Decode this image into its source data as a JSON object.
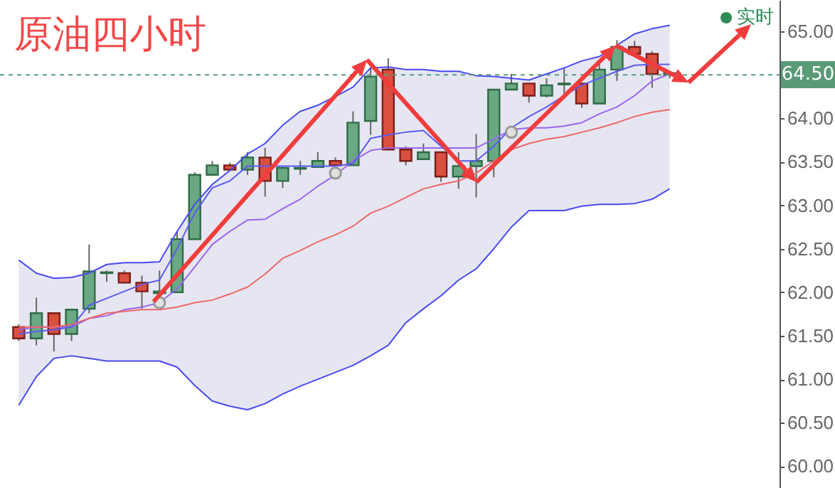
{
  "chart_data": {
    "type": "candlestick",
    "title": "原油四小时",
    "categories": [
      null,
      null,
      null,
      null,
      null,
      null,
      null,
      null,
      null,
      null,
      null,
      null,
      null,
      null,
      null,
      null,
      null,
      null,
      null,
      null,
      null,
      null,
      null,
      null,
      null,
      null,
      null,
      null,
      null,
      null,
      null,
      null,
      null,
      null,
      null,
      null,
      null,
      null
    ],
    "ohlc": [
      [
        61.6,
        61.63,
        61.44,
        61.47
      ],
      [
        61.47,
        61.94,
        61.39,
        61.76
      ],
      [
        61.76,
        61.76,
        61.32,
        61.52
      ],
      [
        61.52,
        61.8,
        61.44,
        61.8
      ],
      [
        61.81,
        62.55,
        61.76,
        62.24
      ],
      [
        62.22,
        62.25,
        62.12,
        62.23
      ],
      [
        62.22,
        62.25,
        62.1,
        62.11
      ],
      [
        62.11,
        62.19,
        61.81,
        62.01
      ],
      [
        61.99,
        62.25,
        61.88,
        62.01
      ],
      [
        62.0,
        62.7,
        62.0,
        62.61
      ],
      [
        62.61,
        63.38,
        62.61,
        63.35
      ],
      [
        63.35,
        63.51,
        63.35,
        63.46
      ],
      [
        63.46,
        63.49,
        63.4,
        63.41
      ],
      [
        63.41,
        63.61,
        63.35,
        63.55
      ],
      [
        63.55,
        63.66,
        63.1,
        63.28
      ],
      [
        63.28,
        63.45,
        63.2,
        63.43
      ],
      [
        63.42,
        63.51,
        63.35,
        63.43
      ],
      [
        63.44,
        63.61,
        63.44,
        63.51
      ],
      [
        63.51,
        63.55,
        63.44,
        63.46
      ],
      [
        63.46,
        64.08,
        63.46,
        63.95
      ],
      [
        63.97,
        64.59,
        63.81,
        64.48
      ],
      [
        64.56,
        64.69,
        63.64,
        63.64
      ],
      [
        63.64,
        63.68,
        63.46,
        63.51
      ],
      [
        63.53,
        63.71,
        63.53,
        63.61
      ],
      [
        63.61,
        63.61,
        63.27,
        63.33
      ],
      [
        63.33,
        63.61,
        63.19,
        63.45
      ],
      [
        63.45,
        63.82,
        63.09,
        63.51
      ],
      [
        63.51,
        64.33,
        63.32,
        64.33
      ],
      [
        64.33,
        64.51,
        64.33,
        64.4
      ],
      [
        64.4,
        64.4,
        64.18,
        64.26
      ],
      [
        64.26,
        64.46,
        64.24,
        64.38
      ],
      [
        64.39,
        64.58,
        64.26,
        64.4
      ],
      [
        64.4,
        64.4,
        64.12,
        64.17
      ],
      [
        64.17,
        64.67,
        64.17,
        64.56
      ],
      [
        64.56,
        64.9,
        64.43,
        64.82
      ],
      [
        64.82,
        64.89,
        64.74,
        64.74
      ],
      [
        64.74,
        64.77,
        64.35,
        64.51
      ],
      [
        64.5,
        64.54,
        64.46,
        64.52
      ]
    ],
    "series": [
      {
        "type": "line",
        "color": "#9966ee",
        "values": [
          61.57,
          61.6,
          61.6,
          61.6,
          61.7,
          61.73,
          61.8,
          61.83,
          61.88,
          62.04,
          62.29,
          62.55,
          62.7,
          62.83,
          62.84,
          62.96,
          63.07,
          63.22,
          63.35,
          63.51,
          63.63,
          63.66,
          63.66,
          63.66,
          63.66,
          63.66,
          63.66,
          63.76,
          63.87,
          63.89,
          63.89,
          63.91,
          63.95,
          64.05,
          64.13,
          64.26,
          64.43,
          64.51
        ],
        "lower": [
          60.7,
          61.03,
          61.24,
          61.27,
          61.24,
          61.21,
          61.21,
          61.21,
          61.21,
          61.14,
          60.93,
          60.75,
          60.69,
          60.65,
          60.72,
          60.83,
          60.92,
          61.0,
          61.08,
          61.16,
          61.27,
          61.39,
          61.65,
          61.81,
          61.96,
          62.14,
          62.27,
          62.5,
          62.75,
          62.94,
          62.94,
          62.94,
          62.99,
          63.01,
          63.01,
          63.02,
          63.07,
          63.19
        ],
        "upper": [
          62.37,
          62.22,
          62.16,
          62.17,
          62.22,
          62.32,
          62.34,
          62.34,
          62.35,
          62.7,
          63.01,
          63.24,
          63.4,
          63.59,
          63.71,
          63.92,
          64.08,
          64.15,
          64.25,
          64.36,
          64.58,
          64.59,
          64.56,
          64.56,
          64.54,
          64.54,
          64.49,
          64.48,
          64.46,
          64.44,
          64.51,
          64.58,
          64.66,
          64.71,
          64.84,
          64.97,
          65.03,
          65.07
        ]
      },
      {
        "type": "line",
        "color": "#4a4af0",
        "values": [
          60.7,
          61.03,
          61.24,
          61.27,
          61.24,
          61.21,
          61.21,
          61.21,
          61.21,
          61.14,
          60.93,
          60.75,
          60.69,
          60.65,
          60.72,
          60.83,
          60.92,
          61.0,
          61.08,
          61.16,
          61.27,
          61.39,
          61.65,
          61.81,
          61.96,
          62.14,
          62.27,
          62.5,
          62.75,
          62.94,
          62.94,
          62.94,
          62.99,
          63.01,
          63.01,
          63.02,
          63.07,
          63.19
        ]
      },
      {
        "type": "line",
        "color": "#4a4af0",
        "values": [
          62.37,
          62.22,
          62.16,
          62.17,
          62.22,
          62.32,
          62.34,
          62.34,
          62.35,
          62.7,
          63.01,
          63.24,
          63.4,
          63.59,
          63.71,
          63.92,
          64.08,
          64.15,
          64.25,
          64.36,
          64.58,
          64.59,
          64.56,
          64.56,
          64.54,
          64.54,
          64.49,
          64.48,
          64.46,
          64.44,
          64.51,
          64.58,
          64.66,
          64.71,
          64.84,
          64.97,
          65.03,
          65.07
        ]
      },
      {
        "type": "line",
        "color": "#5b5bf0",
        "values": [
          61.52,
          61.55,
          61.57,
          61.6,
          61.85,
          61.93,
          62.01,
          62.09,
          62.14,
          62.5,
          62.91,
          63.2,
          63.28,
          63.45,
          63.45,
          63.45,
          63.45,
          63.45,
          63.45,
          63.48,
          63.77,
          63.81,
          63.84,
          63.86,
          63.68,
          63.51,
          63.51,
          63.68,
          63.89,
          64.02,
          64.13,
          64.26,
          64.38,
          64.46,
          64.54,
          64.61,
          64.62,
          64.62
        ]
      },
      {
        "type": "line",
        "color": "#ee6666",
        "values": [
          61.6,
          61.6,
          61.6,
          61.63,
          61.7,
          61.76,
          61.78,
          61.8,
          61.8,
          61.83,
          61.88,
          61.91,
          61.98,
          62.06,
          62.21,
          62.39,
          62.48,
          62.58,
          62.66,
          62.76,
          62.91,
          62.99,
          63.09,
          63.19,
          63.24,
          63.28,
          63.37,
          63.51,
          63.64,
          63.71,
          63.76,
          63.79,
          63.84,
          63.89,
          63.95,
          64.02,
          64.07,
          64.1
        ]
      },
      {
        "type": "scatter",
        "color": "#999999",
        "marker": "circle",
        "values": [
          null,
          null,
          null,
          null,
          null,
          null,
          null,
          null,
          61.88,
          null,
          null,
          null,
          null,
          null,
          null,
          null,
          null,
          null,
          63.37,
          null,
          null,
          null,
          null,
          null,
          null,
          null,
          null,
          null,
          63.84,
          null,
          null,
          null,
          null,
          null,
          null,
          null,
          null,
          null
        ]
      }
    ],
    "ylim": [
      59.75,
      65.36
    ],
    "yticks": [
      {
        "value": 60,
        "label": "60.00"
      },
      {
        "value": 60.5,
        "label": "60.50"
      },
      {
        "value": 61,
        "label": "61.00"
      },
      {
        "value": 61.5,
        "label": "61.50"
      },
      {
        "value": 62,
        "label": "62.00"
      },
      {
        "value": 62.5,
        "label": "62.50"
      },
      {
        "value": 63,
        "label": "63.00"
      },
      {
        "value": 63.5,
        "label": "63.50"
      },
      {
        "value": 64,
        "label": "64.00"
      },
      {
        "value": 65,
        "label": "65.00"
      }
    ],
    "ref_lines": [
      {
        "axis": "y",
        "value": 64.5,
        "label": "64.50",
        "color": "#5a9a77",
        "line_style": "dashed"
      }
    ],
    "annotations": [
      "实时"
    ],
    "tick_labels": "y",
    "grid": false
  }
}
